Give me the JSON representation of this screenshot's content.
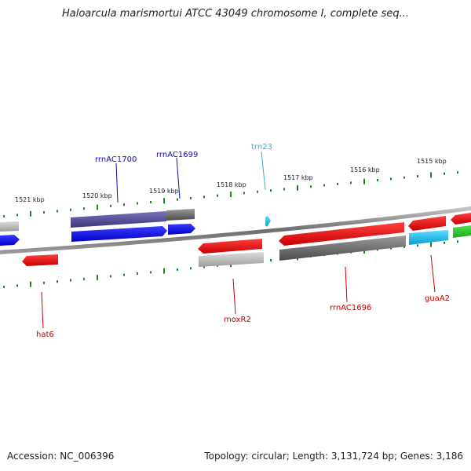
{
  "title": "Haloarcula marismortui ATCC 43049 chromosome I, complete seq...",
  "footer": {
    "accession": "Accession: NC_006396",
    "topology": "Topology: circular; Length: 3,131,724 bp; Genes: 3,186"
  },
  "colors": {
    "backbone": "#7a7a7a",
    "tick": "#1a8a1a",
    "label_blue": "#1010b0",
    "label_cyan": "#30b0d0",
    "label_red": "#c00000"
  },
  "scale_labels": [
    "1521 kbp",
    "1520 kbp",
    "1519 kbp",
    "1518 kbp",
    "1517 kbp",
    "1516 kbp",
    "1515 kbp"
  ],
  "genes": [
    {
      "label": "rrnAC1700",
      "color": "#1010b0"
    },
    {
      "label": "rrnAC1699",
      "color": "#1010b0"
    },
    {
      "label": "trn23",
      "color": "#30b0d0"
    },
    {
      "label": "hat6",
      "color": "#c00000"
    },
    {
      "label": "moxR2",
      "color": "#c00000"
    },
    {
      "label": "rrnAC1696",
      "color": "#c00000"
    },
    {
      "label": "guaA2",
      "color": "#c00000"
    }
  ]
}
